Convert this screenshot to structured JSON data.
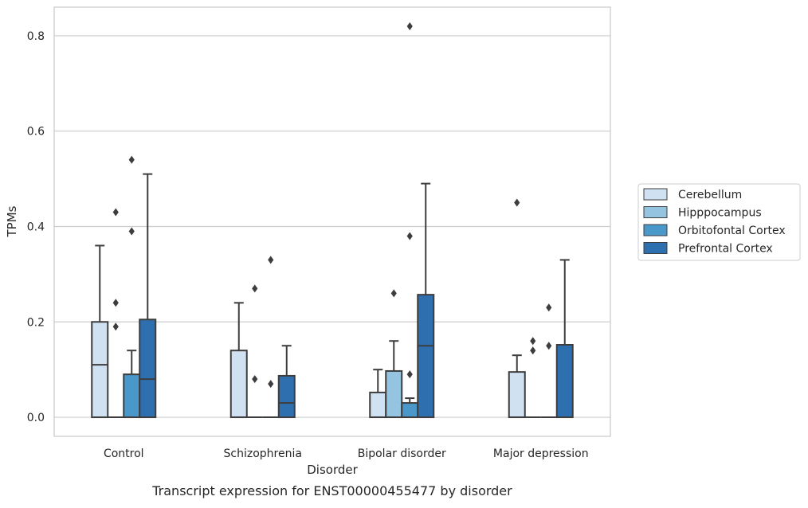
{
  "chart_data": {
    "type": "box",
    "title": "",
    "caption": "Transcript expression for ENST00000455477 by disorder",
    "xlabel": "Disorder",
    "ylabel": "TPMs",
    "ylim": [
      -0.04,
      0.86
    ],
    "yticks": [
      0.0,
      0.2,
      0.4,
      0.6,
      0.8
    ],
    "ytick_labels": [
      "0.0",
      "0.2",
      "0.4",
      "0.6",
      "0.8"
    ],
    "grid": "horizontal",
    "legend_position": "right",
    "categories": [
      "Control",
      "Schizophrenia",
      "Bipolar disorder",
      "Major depression"
    ],
    "series": [
      {
        "name": "Cerebellum",
        "color": "#d0e1f2",
        "boxes": [
          {
            "q1": 0.0,
            "median": 0.11,
            "q3": 0.2,
            "whisker_low": 0.0,
            "whisker_high": 0.36,
            "outliers": []
          },
          {
            "q1": 0.0,
            "median": 0.0,
            "q3": 0.14,
            "whisker_low": 0.0,
            "whisker_high": 0.24,
            "outliers": []
          },
          {
            "q1": 0.0,
            "median": 0.0,
            "q3": 0.052,
            "whisker_low": 0.0,
            "whisker_high": 0.1,
            "outliers": []
          },
          {
            "q1": 0.0,
            "median": 0.0,
            "q3": 0.095,
            "whisker_low": 0.0,
            "whisker_high": 0.13,
            "outliers": [
              0.45
            ]
          }
        ]
      },
      {
        "name": "Hipppocampus",
        "color": "#94c4df",
        "boxes": [
          {
            "q1": 0.0,
            "median": 0.0,
            "q3": 0.0,
            "whisker_low": 0.0,
            "whisker_high": 0.0,
            "outliers": [
              0.43,
              0.24,
              0.19
            ]
          },
          {
            "q1": 0.0,
            "median": 0.0,
            "q3": 0.0,
            "whisker_low": 0.0,
            "whisker_high": 0.0,
            "outliers": [
              0.27,
              0.08
            ]
          },
          {
            "q1": 0.0,
            "median": 0.0,
            "q3": 0.097,
            "whisker_low": 0.0,
            "whisker_high": 0.16,
            "outliers": [
              0.26
            ]
          },
          {
            "q1": 0.0,
            "median": 0.0,
            "q3": 0.0,
            "whisker_low": 0.0,
            "whisker_high": 0.0,
            "outliers": [
              0.16,
              0.14
            ]
          }
        ]
      },
      {
        "name": "Orbitofontal Cortex",
        "color": "#4a98c9",
        "boxes": [
          {
            "q1": 0.0,
            "median": 0.0,
            "q3": 0.09,
            "whisker_low": 0.0,
            "whisker_high": 0.14,
            "outliers": [
              0.54,
              0.39
            ]
          },
          {
            "q1": 0.0,
            "median": 0.0,
            "q3": 0.0,
            "whisker_low": 0.0,
            "whisker_high": 0.0,
            "outliers": [
              0.33,
              0.07
            ]
          },
          {
            "q1": 0.0,
            "median": 0.0,
            "q3": 0.03,
            "whisker_low": 0.0,
            "whisker_high": 0.04,
            "outliers": [
              0.82,
              0.38,
              0.09
            ]
          },
          {
            "q1": 0.0,
            "median": 0.0,
            "q3": 0.0,
            "whisker_low": 0.0,
            "whisker_high": 0.0,
            "outliers": [
              0.23,
              0.15
            ]
          }
        ]
      },
      {
        "name": "Prefrontal Cortex",
        "color": "#2e6fb0",
        "boxes": [
          {
            "q1": 0.0,
            "median": 0.08,
            "q3": 0.205,
            "whisker_low": 0.0,
            "whisker_high": 0.51,
            "outliers": []
          },
          {
            "q1": 0.0,
            "median": 0.03,
            "q3": 0.087,
            "whisker_low": 0.0,
            "whisker_high": 0.15,
            "outliers": []
          },
          {
            "q1": 0.0,
            "median": 0.15,
            "q3": 0.257,
            "whisker_low": 0.0,
            "whisker_high": 0.49,
            "outliers": []
          },
          {
            "q1": 0.0,
            "median": 0.0,
            "q3": 0.152,
            "whisker_low": 0.0,
            "whisker_high": 0.33,
            "outliers": []
          }
        ]
      }
    ]
  },
  "style": {
    "box_edge_color": "#3d3d3d",
    "grid_color": "#cccccc",
    "frame_color": "#cccccc",
    "text_color": "#262626"
  }
}
